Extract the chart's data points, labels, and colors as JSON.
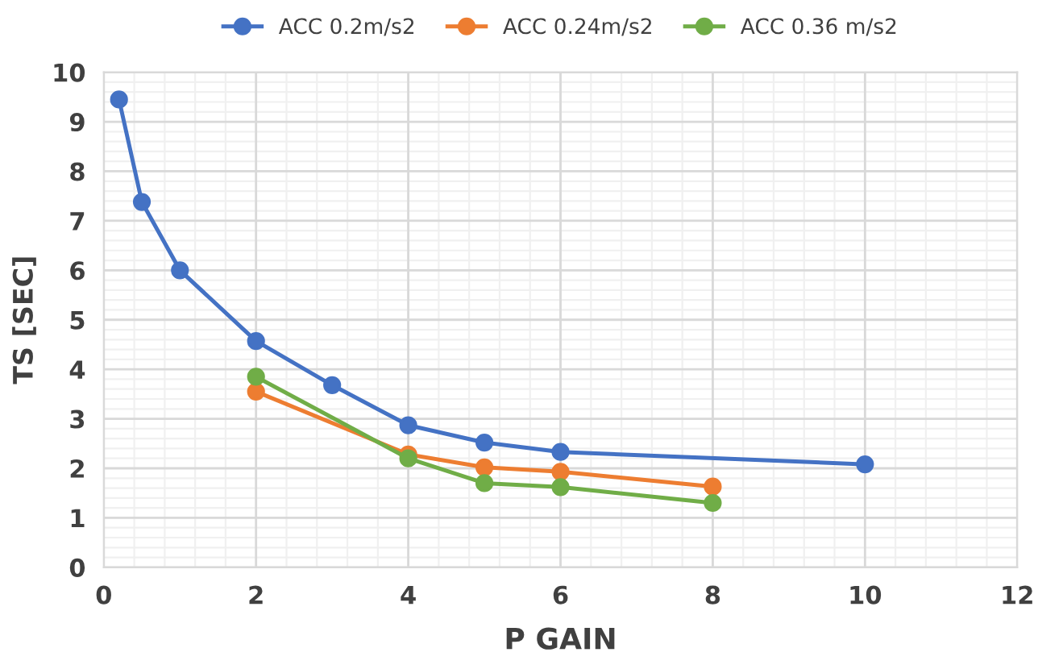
{
  "chart_data": {
    "type": "line",
    "xlabel": "P GAIN",
    "ylabel": "TS [SEC]",
    "xlim": [
      0,
      12
    ],
    "xticks": [
      0,
      2,
      4,
      6,
      8,
      10,
      12
    ],
    "ylim": [
      0,
      10
    ],
    "yticks": [
      0,
      1,
      2,
      3,
      4,
      5,
      6,
      7,
      8,
      9,
      10
    ],
    "grid": true,
    "legend": "top",
    "marker": "circle",
    "series": [
      {
        "name": "ACC 0.2m/s2",
        "color": "#4472c4",
        "x": [
          0.2,
          0.5,
          1,
          2,
          3,
          4,
          5,
          6,
          10
        ],
        "values": [
          9.45,
          7.38,
          6.0,
          4.57,
          3.68,
          2.87,
          2.52,
          2.33,
          2.08
        ]
      },
      {
        "name": "ACC 0.24m/s2",
        "color": "#ed7d31",
        "x": [
          2,
          4,
          5,
          6,
          8
        ],
        "values": [
          3.55,
          2.28,
          2.02,
          1.93,
          1.63
        ]
      },
      {
        "name": "ACC 0.36 m/s2",
        "color": "#70ad47",
        "x": [
          2,
          4,
          5,
          6,
          8
        ],
        "values": [
          3.85,
          2.2,
          1.7,
          1.62,
          1.3
        ]
      }
    ]
  }
}
